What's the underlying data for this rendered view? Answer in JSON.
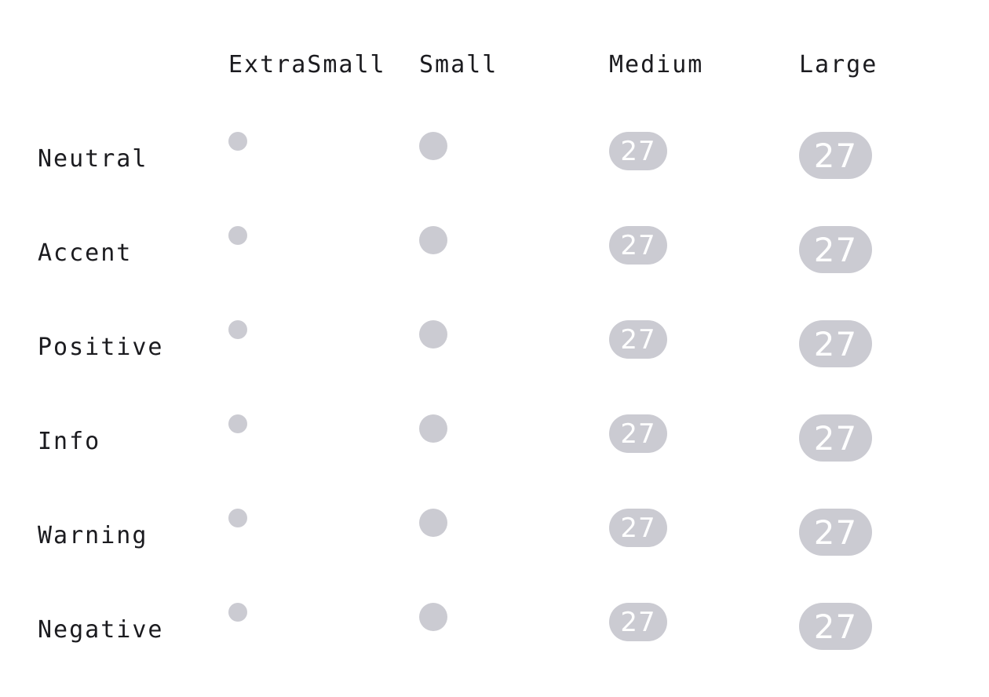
{
  "columns": {
    "extra_small": "ExtraSmall",
    "small": "Small",
    "medium": "Medium",
    "large": "Large"
  },
  "badge_color": "#cbcbd2",
  "badge_text_color": "#ffffff",
  "rows": [
    {
      "label": "Neutral",
      "medium_count": "27",
      "large_count": "27"
    },
    {
      "label": "Accent",
      "medium_count": "27",
      "large_count": "27"
    },
    {
      "label": "Positive",
      "medium_count": "27",
      "large_count": "27"
    },
    {
      "label": "Info",
      "medium_count": "27",
      "large_count": "27"
    },
    {
      "label": "Warning",
      "medium_count": "27",
      "large_count": "27"
    },
    {
      "label": "Negative",
      "medium_count": "27",
      "large_count": "27"
    }
  ]
}
